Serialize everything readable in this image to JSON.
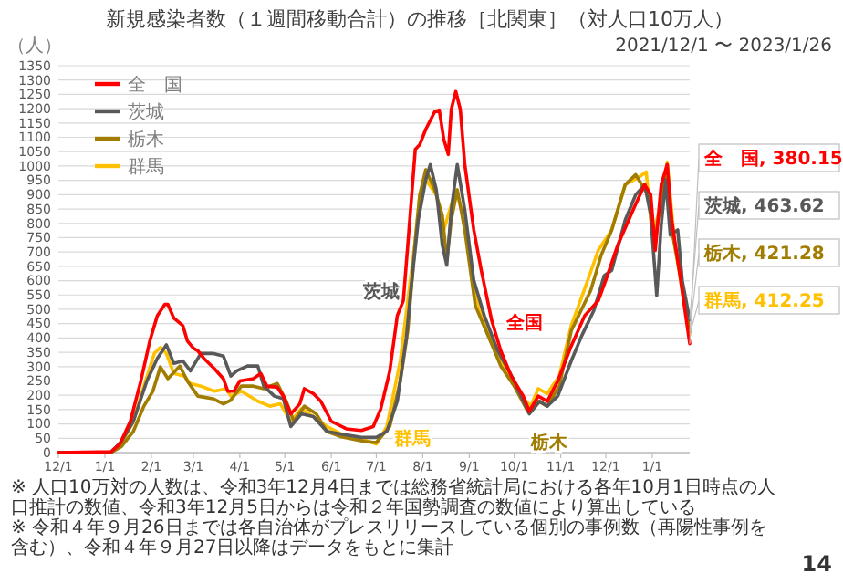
{
  "chart_data": {
    "type": "line",
    "title": "新規感染者数（１週間移動合計）の推移［北関東］（対人口10万人）",
    "subtitle": "2021/12/1 〜 2023/1/26",
    "ylabel": "（人）",
    "xlim": [
      "2021-12-01",
      "2023-01-26"
    ],
    "ylim": [
      0,
      1350
    ],
    "yticks": [
      0,
      50,
      100,
      150,
      200,
      250,
      300,
      350,
      400,
      450,
      500,
      550,
      600,
      650,
      700,
      750,
      800,
      850,
      900,
      950,
      1000,
      1050,
      1100,
      1150,
      1200,
      1250,
      1300,
      1350
    ],
    "xticks": [
      {
        "value": "2021-12-01",
        "label": "12/1"
      },
      {
        "value": "2022-01-01",
        "label": "1/1"
      },
      {
        "value": "2022-02-01",
        "label": "2/1"
      },
      {
        "value": "2022-03-01",
        "label": "3/1"
      },
      {
        "value": "2022-04-01",
        "label": "4/1"
      },
      {
        "value": "2022-05-01",
        "label": "5/1"
      },
      {
        "value": "2022-06-01",
        "label": "6/1"
      },
      {
        "value": "2022-07-01",
        "label": "7/1"
      },
      {
        "value": "2022-08-01",
        "label": "8/1"
      },
      {
        "value": "2022-09-01",
        "label": "9/1"
      },
      {
        "value": "2022-10-01",
        "label": "10/1"
      },
      {
        "value": "2022-11-01",
        "label": "11/1"
      },
      {
        "value": "2022-12-01",
        "label": "12/1"
      },
      {
        "value": "2023-01-01",
        "label": "1/1"
      }
    ],
    "grid": "y",
    "legend": "top left",
    "marker": "none",
    "line_style": "solid",
    "series": [
      {
        "name": "全　国",
        "color": "#ff0000",
        "x": [
          "2021-12-01",
          "2022-01-05",
          "2022-01-11",
          "2022-01-18",
          "2022-01-25",
          "2022-01-31",
          "2022-02-05",
          "2022-02-10",
          "2022-02-12",
          "2022-02-16",
          "2022-02-22",
          "2022-02-25",
          "2022-03-01",
          "2022-03-04",
          "2022-03-08",
          "2022-03-15",
          "2022-03-21",
          "2022-03-24",
          "2022-03-28",
          "2022-04-01",
          "2022-04-10",
          "2022-04-15",
          "2022-04-19",
          "2022-04-26",
          "2022-04-30",
          "2022-05-05",
          "2022-05-11",
          "2022-05-14",
          "2022-05-20",
          "2022-05-25",
          "2022-06-01",
          "2022-06-11",
          "2022-06-21",
          "2022-06-29",
          "2022-07-04",
          "2022-07-10",
          "2022-07-15",
          "2022-07-19",
          "2022-07-22",
          "2022-07-27",
          "2022-07-30",
          "2022-08-03",
          "2022-08-09",
          "2022-08-12",
          "2022-08-15",
          "2022-08-18",
          "2022-08-20",
          "2022-08-23",
          "2022-08-26",
          "2022-08-29",
          "2022-09-04",
          "2022-09-09",
          "2022-09-16",
          "2022-09-22",
          "2022-09-29",
          "2022-10-07",
          "2022-10-11",
          "2022-10-17",
          "2022-10-23",
          "2022-10-30",
          "2022-11-08",
          "2022-11-17",
          "2022-11-26",
          "2022-12-01",
          "2022-12-09",
          "2022-12-20",
          "2022-12-27",
          "2022-12-31",
          "2023-01-03",
          "2023-01-07",
          "2023-01-11",
          "2023-01-14",
          "2023-01-19",
          "2023-01-26"
        ],
        "values": [
          0,
          3,
          30,
          109,
          250,
          390,
          478,
          517,
          517,
          469,
          443,
          390,
          364,
          355,
          329,
          293,
          258,
          214,
          214,
          250,
          258,
          276,
          232,
          228,
          197,
          135,
          170,
          223,
          206,
          179,
          109,
          83,
          77,
          91,
          153,
          285,
          478,
          530,
          724,
          1058,
          1075,
          1128,
          1190,
          1195,
          1093,
          1040,
          1198,
          1260,
          1198,
          1005,
          777,
          636,
          460,
          355,
          267,
          197,
          144,
          197,
          179,
          250,
          372,
          478,
          530,
          601,
          724,
          856,
          935,
          900,
          706,
          935,
          1005,
          812,
          636,
          380.15
        ],
        "value_labels": [
          null,
          null,
          null,
          null,
          null,
          null,
          null,
          null,
          null,
          null,
          null,
          null,
          null,
          null,
          null,
          null,
          null,
          null,
          null,
          null,
          null,
          null,
          null,
          null,
          null,
          null,
          null,
          null,
          null,
          null,
          null,
          null,
          null,
          null,
          null,
          null,
          null,
          null,
          null,
          null,
          null,
          null,
          null,
          null,
          null,
          null,
          null,
          null,
          null,
          null,
          null,
          null,
          null,
          null,
          null,
          null,
          null,
          null,
          null,
          null,
          null,
          null,
          null,
          null,
          null,
          null,
          null,
          null,
          null,
          null,
          null,
          null,
          null,
          "全　国, 380.15"
        ]
      },
      {
        "name": "茨城",
        "color": "#595959",
        "x": [
          "2021-12-01",
          "2022-01-05",
          "2022-01-12",
          "2022-01-20",
          "2022-01-29",
          "2022-02-05",
          "2022-02-11",
          "2022-02-16",
          "2022-02-22",
          "2022-02-27",
          "2022-03-06",
          "2022-03-14",
          "2022-03-21",
          "2022-03-26",
          "2022-03-30",
          "2022-04-06",
          "2022-04-13",
          "2022-04-17",
          "2022-04-24",
          "2022-04-30",
          "2022-05-05",
          "2022-05-12",
          "2022-05-20",
          "2022-05-29",
          "2022-06-07",
          "2022-06-21",
          "2022-07-01",
          "2022-07-08",
          "2022-07-15",
          "2022-07-21",
          "2022-07-24",
          "2022-07-29",
          "2022-08-03",
          "2022-08-06",
          "2022-08-10",
          "2022-08-14",
          "2022-08-17",
          "2022-08-20",
          "2022-08-24",
          "2022-08-29",
          "2022-09-04",
          "2022-09-11",
          "2022-09-20",
          "2022-10-01",
          "2022-10-11",
          "2022-10-18",
          "2022-10-23",
          "2022-10-30",
          "2022-11-08",
          "2022-11-15",
          "2022-11-23",
          "2022-11-30",
          "2022-12-05",
          "2022-12-14",
          "2022-12-21",
          "2022-12-27",
          "2022-12-31",
          "2023-01-04",
          "2023-01-07",
          "2023-01-10",
          "2023-01-13",
          "2023-01-18",
          "2023-01-21",
          "2023-01-26"
        ],
        "values": [
          0,
          0,
          39,
          109,
          250,
          329,
          376,
          311,
          320,
          285,
          346,
          346,
          337,
          267,
          285,
          302,
          302,
          232,
          197,
          188,
          91,
          135,
          126,
          74,
          65,
          53,
          53,
          74,
          179,
          400,
          566,
          812,
          952,
          1005,
          917,
          724,
          654,
          847,
          1005,
          847,
          601,
          478,
          355,
          250,
          135,
          179,
          162,
          197,
          320,
          408,
          495,
          618,
          636,
          812,
          900,
          935,
          829,
          548,
          794,
          952,
          759,
          777,
          601,
          463.62
        ],
        "value_labels": [
          null,
          null,
          null,
          null,
          null,
          null,
          null,
          null,
          null,
          null,
          null,
          null,
          null,
          null,
          null,
          null,
          null,
          null,
          null,
          null,
          null,
          null,
          null,
          null,
          null,
          null,
          null,
          null,
          null,
          null,
          null,
          null,
          null,
          null,
          null,
          null,
          null,
          null,
          null,
          null,
          null,
          null,
          null,
          null,
          null,
          null,
          null,
          null,
          null,
          null,
          null,
          null,
          null,
          null,
          null,
          null,
          null,
          null,
          null,
          null,
          null,
          null,
          null,
          "茨城, 463.62"
        ]
      },
      {
        "name": "栃木",
        "color": "#a07c00",
        "x": [
          "2021-12-01",
          "2022-01-05",
          "2022-01-12",
          "2022-01-20",
          "2022-01-27",
          "2022-02-02",
          "2022-02-07",
          "2022-02-12",
          "2022-02-20",
          "2022-02-25",
          "2022-03-04",
          "2022-03-14",
          "2022-03-21",
          "2022-03-26",
          "2022-04-02",
          "2022-04-10",
          "2022-04-17",
          "2022-04-26",
          "2022-05-02",
          "2022-05-07",
          "2022-05-14",
          "2022-05-22",
          "2022-05-29",
          "2022-06-07",
          "2022-06-23",
          "2022-07-01",
          "2022-07-10",
          "2022-07-17",
          "2022-07-22",
          "2022-07-27",
          "2022-07-30",
          "2022-08-03",
          "2022-08-09",
          "2022-08-14",
          "2022-08-17",
          "2022-08-20",
          "2022-08-24",
          "2022-08-29",
          "2022-09-05",
          "2022-09-15",
          "2022-09-22",
          "2022-10-01",
          "2022-10-10",
          "2022-10-17",
          "2022-10-23",
          "2022-10-31",
          "2022-11-08",
          "2022-11-21",
          "2022-11-28",
          "2022-12-05",
          "2022-12-14",
          "2022-12-21",
          "2022-12-29",
          "2023-01-03",
          "2023-01-07",
          "2023-01-11",
          "2023-01-14",
          "2023-01-21",
          "2023-01-26"
        ],
        "values": [
          0,
          0,
          21,
          74,
          162,
          214,
          299,
          258,
          302,
          250,
          197,
          188,
          170,
          183,
          232,
          232,
          223,
          241,
          179,
          109,
          162,
          135,
          74,
          56,
          39,
          35,
          91,
          250,
          425,
          741,
          900,
          987,
          917,
          829,
          671,
          812,
          917,
          777,
          513,
          390,
          302,
          232,
          144,
          179,
          162,
          232,
          425,
          566,
          689,
          777,
          935,
          970,
          900,
          741,
          882,
          1005,
          777,
          584,
          421.28
        ],
        "value_labels": [
          null,
          null,
          null,
          null,
          null,
          null,
          null,
          null,
          null,
          null,
          null,
          null,
          null,
          null,
          null,
          null,
          null,
          null,
          null,
          null,
          null,
          null,
          null,
          null,
          null,
          null,
          null,
          null,
          null,
          null,
          null,
          null,
          null,
          null,
          null,
          null,
          null,
          null,
          null,
          null,
          null,
          null,
          null,
          null,
          null,
          null,
          null,
          null,
          null,
          null,
          null,
          null,
          null,
          null,
          null,
          null,
          null,
          null,
          "栃木, 421.28"
        ]
      },
      {
        "name": "群馬",
        "color": "#ffc000",
        "x": [
          "2021-12-01",
          "2022-01-05",
          "2022-01-12",
          "2022-01-20",
          "2022-01-27",
          "2022-02-03",
          "2022-02-07",
          "2022-02-11",
          "2022-02-16",
          "2022-02-23",
          "2022-02-27",
          "2022-03-06",
          "2022-03-15",
          "2022-03-23",
          "2022-03-26",
          "2022-04-02",
          "2022-04-13",
          "2022-04-21",
          "2022-04-28",
          "2022-05-05",
          "2022-05-12",
          "2022-05-20",
          "2022-05-29",
          "2022-06-11",
          "2022-06-21",
          "2022-07-01",
          "2022-07-08",
          "2022-07-17",
          "2022-07-27",
          "2022-07-30",
          "2022-08-03",
          "2022-08-10",
          "2022-08-15",
          "2022-08-19",
          "2022-08-23",
          "2022-08-29",
          "2022-09-04",
          "2022-09-13",
          "2022-09-24",
          "2022-10-03",
          "2022-10-12",
          "2022-10-17",
          "2022-10-23",
          "2022-10-31",
          "2022-11-08",
          "2022-11-19",
          "2022-11-26",
          "2022-12-05",
          "2022-12-14",
          "2022-12-23",
          "2022-12-28",
          "2023-01-01",
          "2023-01-07",
          "2023-01-11",
          "2023-01-16",
          "2023-01-21",
          "2023-01-26"
        ],
        "values": [
          0,
          0,
          30,
          109,
          232,
          346,
          367,
          346,
          276,
          267,
          241,
          232,
          214,
          223,
          197,
          214,
          179,
          162,
          170,
          109,
          153,
          126,
          91,
          56,
          47,
          30,
          91,
          320,
          741,
          900,
          952,
          900,
          777,
          847,
          917,
          812,
          566,
          425,
          302,
          214,
          162,
          223,
          206,
          267,
          443,
          601,
          706,
          777,
          935,
          961,
          979,
          759,
          865,
          1014,
          724,
          566,
          412.25
        ],
        "value_labels": [
          null,
          null,
          null,
          null,
          null,
          null,
          null,
          null,
          null,
          null,
          null,
          null,
          null,
          null,
          null,
          null,
          null,
          null,
          null,
          null,
          null,
          null,
          null,
          null,
          null,
          null,
          null,
          null,
          null,
          null,
          null,
          null,
          null,
          null,
          null,
          null,
          null,
          null,
          null,
          null,
          null,
          null,
          null,
          null,
          null,
          null,
          null,
          null,
          null,
          null,
          null,
          null,
          null,
          null,
          null,
          null,
          "群馬, 412.25"
        ]
      }
    ],
    "annotations": [
      "全国",
      "茨城",
      "栃木",
      "群馬",
      "※ 人口10万対の人数は、令和3年12月4日までは総務省統計局における各年10月1日時点の人口推計の数値、令和3年12月5日からは令和２年国勢調査の数値により算出している",
      "※ 令和４年９月26日までは各自治体がプレスリリースしている個別の事例数（再陽性事例を含む）、令和４年９月27日以降はデータをもとに集計",
      "14"
    ]
  }
}
